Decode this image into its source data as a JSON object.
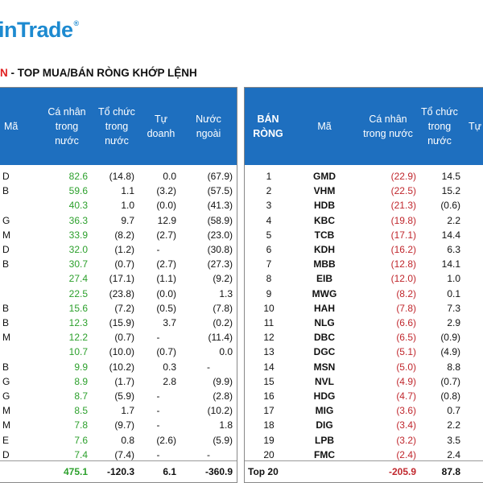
{
  "logo": {
    "text": "inTrade",
    "reg": "®"
  },
  "title": {
    "red": "N",
    "rest": " - TOP MUA/BÁN RÒNG KHỚP LỆNH"
  },
  "left": {
    "headers": {
      "ma": "Mã",
      "ca_nhan": "Cá nhân\ntrong\nnước",
      "to_chuc": "Tổ chức\ntrong\nnước",
      "tu_doanh": "Tự\ndoanh",
      "nuoc_ngoai": "Nước\nngoài"
    },
    "rows": [
      {
        "ma": "D",
        "ca_nhan": "82.6",
        "to_chuc": "(14.8)",
        "tu_doanh": "0.0",
        "nuoc_ngoai": "(67.9)"
      },
      {
        "ma": "B",
        "ca_nhan": "59.6",
        "to_chuc": "1.1",
        "tu_doanh": "(3.2)",
        "nuoc_ngoai": "(57.5)"
      },
      {
        "ma": "",
        "ca_nhan": "40.3",
        "to_chuc": "1.0",
        "tu_doanh": "(0.0)",
        "nuoc_ngoai": "(41.3)"
      },
      {
        "ma": "G",
        "ca_nhan": "36.3",
        "to_chuc": "9.7",
        "tu_doanh": "12.9",
        "nuoc_ngoai": "(58.9)"
      },
      {
        "ma": "M",
        "ca_nhan": "33.9",
        "to_chuc": "(8.2)",
        "tu_doanh": "(2.7)",
        "nuoc_ngoai": "(23.0)"
      },
      {
        "ma": "D",
        "ca_nhan": "32.0",
        "to_chuc": "(1.2)",
        "tu_doanh": "-",
        "nuoc_ngoai": "(30.8)"
      },
      {
        "ma": "B",
        "ca_nhan": "30.7",
        "to_chuc": "(0.7)",
        "tu_doanh": "(2.7)",
        "nuoc_ngoai": "(27.3)"
      },
      {
        "ma": "",
        "ca_nhan": "27.4",
        "to_chuc": "(17.1)",
        "tu_doanh": "(1.1)",
        "nuoc_ngoai": "(9.2)"
      },
      {
        "ma": "",
        "ca_nhan": "22.5",
        "to_chuc": "(23.8)",
        "tu_doanh": "(0.0)",
        "nuoc_ngoai": "1.3"
      },
      {
        "ma": "B",
        "ca_nhan": "15.6",
        "to_chuc": "(7.2)",
        "tu_doanh": "(0.5)",
        "nuoc_ngoai": "(7.8)"
      },
      {
        "ma": "B",
        "ca_nhan": "12.3",
        "to_chuc": "(15.9)",
        "tu_doanh": "3.7",
        "nuoc_ngoai": "(0.2)"
      },
      {
        "ma": "M",
        "ca_nhan": "12.2",
        "to_chuc": "(0.7)",
        "tu_doanh": "-",
        "nuoc_ngoai": "(11.4)"
      },
      {
        "ma": "",
        "ca_nhan": "10.7",
        "to_chuc": "(10.0)",
        "tu_doanh": "(0.7)",
        "nuoc_ngoai": "0.0"
      },
      {
        "ma": "B",
        "ca_nhan": "9.9",
        "to_chuc": "(10.2)",
        "tu_doanh": "0.3",
        "nuoc_ngoai": "-"
      },
      {
        "ma": "G",
        "ca_nhan": "8.9",
        "to_chuc": "(1.7)",
        "tu_doanh": "2.8",
        "nuoc_ngoai": "(9.9)"
      },
      {
        "ma": "G",
        "ca_nhan": "8.7",
        "to_chuc": "(5.9)",
        "tu_doanh": "-",
        "nuoc_ngoai": "(2.8)"
      },
      {
        "ma": "M",
        "ca_nhan": "8.5",
        "to_chuc": "1.7",
        "tu_doanh": "-",
        "nuoc_ngoai": "(10.2)"
      },
      {
        "ma": "M",
        "ca_nhan": "7.8",
        "to_chuc": "(9.7)",
        "tu_doanh": "-",
        "nuoc_ngoai": "1.8"
      },
      {
        "ma": "E",
        "ca_nhan": "7.6",
        "to_chuc": "0.8",
        "tu_doanh": "(2.6)",
        "nuoc_ngoai": "(5.9)"
      },
      {
        "ma": "D",
        "ca_nhan": "7.4",
        "to_chuc": "(7.4)",
        "tu_doanh": "-",
        "nuoc_ngoai": "-"
      }
    ],
    "total": {
      "ca_nhan": "475.1",
      "to_chuc": "-120.3",
      "tu_doanh": "6.1",
      "nuoc_ngoai": "-360.9"
    }
  },
  "right": {
    "headers": {
      "ban_rong": "BÁN\nRÒNG",
      "ma": "Mã",
      "ca_nhan": "Cá nhân\ntrong nước",
      "to_chuc": "Tổ chức\ntrong\nnước",
      "tu": "Tự"
    },
    "rows": [
      {
        "rank": "1",
        "ma": "GMD",
        "ca_nhan": "(22.9)",
        "to_chuc": "14.5"
      },
      {
        "rank": "2",
        "ma": "VHM",
        "ca_nhan": "(22.5)",
        "to_chuc": "15.2"
      },
      {
        "rank": "3",
        "ma": "HDB",
        "ca_nhan": "(21.3)",
        "to_chuc": "(0.6)"
      },
      {
        "rank": "4",
        "ma": "KBC",
        "ca_nhan": "(19.8)",
        "to_chuc": "2.2"
      },
      {
        "rank": "5",
        "ma": "TCB",
        "ca_nhan": "(17.1)",
        "to_chuc": "14.4"
      },
      {
        "rank": "6",
        "ma": "KDH",
        "ca_nhan": "(16.2)",
        "to_chuc": "6.3"
      },
      {
        "rank": "7",
        "ma": "MBB",
        "ca_nhan": "(12.8)",
        "to_chuc": "14.1"
      },
      {
        "rank": "8",
        "ma": "EIB",
        "ca_nhan": "(12.0)",
        "to_chuc": "1.0"
      },
      {
        "rank": "9",
        "ma": "MWG",
        "ca_nhan": "(8.2)",
        "to_chuc": "0.1"
      },
      {
        "rank": "10",
        "ma": "HAH",
        "ca_nhan": "(7.8)",
        "to_chuc": "7.3"
      },
      {
        "rank": "11",
        "ma": "NLG",
        "ca_nhan": "(6.6)",
        "to_chuc": "2.9"
      },
      {
        "rank": "12",
        "ma": "DBC",
        "ca_nhan": "(6.5)",
        "to_chuc": "(0.9)"
      },
      {
        "rank": "13",
        "ma": "DGC",
        "ca_nhan": "(5.1)",
        "to_chuc": "(4.9)"
      },
      {
        "rank": "14",
        "ma": "MSN",
        "ca_nhan": "(5.0)",
        "to_chuc": "8.8"
      },
      {
        "rank": "15",
        "ma": "NVL",
        "ca_nhan": "(4.9)",
        "to_chuc": "(0.7)"
      },
      {
        "rank": "16",
        "ma": "HDG",
        "ca_nhan": "(4.7)",
        "to_chuc": "(0.8)"
      },
      {
        "rank": "17",
        "ma": "MIG",
        "ca_nhan": "(3.6)",
        "to_chuc": "0.7"
      },
      {
        "rank": "18",
        "ma": "DIG",
        "ca_nhan": "(3.4)",
        "to_chuc": "2.2"
      },
      {
        "rank": "19",
        "ma": "LPB",
        "ca_nhan": "(3.2)",
        "to_chuc": "3.5"
      },
      {
        "rank": "20",
        "ma": "FMC",
        "ca_nhan": "(2.4)",
        "to_chuc": "2.4"
      }
    ],
    "total": {
      "label": "Top 20",
      "ca_nhan": "-205.9",
      "to_chuc": "87.8"
    }
  }
}
